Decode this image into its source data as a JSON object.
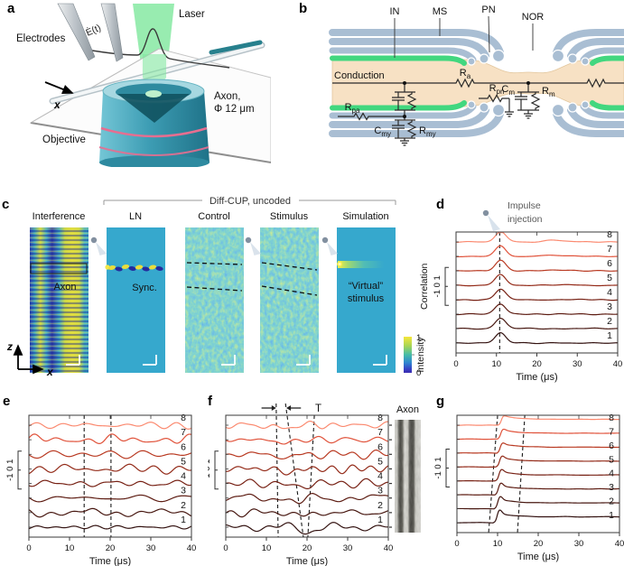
{
  "panels": {
    "a": {
      "label": "a",
      "electrodes_label": "Electrodes",
      "efield_label": "Ė(t)",
      "laser_label": "Laser",
      "axon_label_line1": "Axon,",
      "axon_label_line2": "Φ 12 μm",
      "x_axis_label": "x",
      "objective_label": "Objective"
    },
    "b": {
      "label": "b",
      "region_labels": [
        "IN",
        "MS",
        "PN",
        "NOR"
      ],
      "conduction_label": "Conduction",
      "components": [
        {
          "base": "R",
          "sub": "a"
        },
        {
          "base": "R",
          "sub": "pa"
        },
        {
          "base": "C",
          "sub": "my"
        },
        {
          "base": "R",
          "sub": "my"
        },
        {
          "base": "R",
          "sub": "pn"
        },
        {
          "base": "C",
          "sub": "m"
        },
        {
          "base": "R",
          "sub": "m"
        }
      ]
    },
    "c": {
      "label": "c",
      "group_title": "Diff-CUP, uncoded",
      "columns": [
        {
          "title": "Interference",
          "note": "Axon"
        },
        {
          "title": "LN",
          "note": "Sync."
        },
        {
          "title": "Control"
        },
        {
          "title": "Stimulus"
        },
        {
          "title": "Simulation",
          "note_line1": "“Virtual”",
          "note_line2": "stimulus"
        }
      ],
      "colorbar": {
        "label": "Intensity",
        "tick_max": "1",
        "tick_min": "0"
      },
      "axes": {
        "vertical": "z",
        "horizontal": "x"
      }
    },
    "d": {
      "label": "d"
    },
    "e": {
      "label": "e"
    },
    "f": {
      "label": "f"
    },
    "g": {
      "label": "g"
    }
  },
  "colors": {
    "trace_gradient": [
      "#331210",
      "#471710",
      "#5d1c12",
      "#772114",
      "#932a18",
      "#b93a22",
      "#e0523a",
      "#fb8a70"
    ],
    "heatmap_background": "#36a8cd",
    "heatmap_yellow": "#e9dd3c",
    "heatmap_dark_blue": "#252b9d",
    "myelin_blue_gray": "#a9bed3",
    "axoplasm_tan": "#f7e1c4",
    "membrane_green": "#42d77f",
    "objective_teal": "#49a9be",
    "laser_green": "#7ee79c",
    "ring_pink": "#e66e90",
    "dashed_marker": "#1a1a1a"
  },
  "chart_data": [
    {
      "id": "d",
      "type": "line",
      "xlabel": "Time (μs)",
      "ylabel": "Correlation",
      "x_range": [
        0,
        40
      ],
      "xticks": [
        "0",
        "10",
        "20",
        "30",
        "40"
      ],
      "y_scalebar_labels": "-1 0 1",
      "trace_labels": [
        "1",
        "2",
        "3",
        "4",
        "5",
        "6",
        "7",
        "8"
      ],
      "waveform": "impulse",
      "peak_time_us": 11,
      "secondary_bump_us": 25,
      "dashed_lines_us": [
        [
          10.8,
          10.8
        ]
      ],
      "annotation": {
        "line1": "Impulse",
        "line2": "injection"
      }
    },
    {
      "id": "e",
      "type": "line",
      "xlabel": "Time (μs)",
      "x_range": [
        0,
        40
      ],
      "xticks": [
        "0",
        "10",
        "20",
        "30",
        "40"
      ],
      "y_scalebar_labels": "-1 0 1",
      "trace_labels": [
        "1",
        "2",
        "3",
        "4",
        "5",
        "6",
        "7",
        "8"
      ],
      "waveform": "noise",
      "dashed_lines_us": [
        [
          13.6,
          13.6
        ],
        [
          20.2,
          20.2
        ]
      ]
    },
    {
      "id": "f",
      "type": "line",
      "xlabel": "Time (μs)",
      "x_range": [
        0,
        40
      ],
      "xticks": [
        "0",
        "10",
        "20",
        "30",
        "40"
      ],
      "y_scalebar_labels": "-1 0 1",
      "trace_labels": [
        "1",
        "2",
        "3",
        "4",
        "5",
        "6",
        "7",
        "8"
      ],
      "waveform": "noise-dip",
      "dip_first_us": 13.3,
      "dip_step_us": 1.0,
      "dashed_lines_us": [
        [
          12.4,
          12.9
        ],
        [
          14.7,
          19.1
        ],
        [
          21.8,
          20.2
        ]
      ],
      "interval_label": "T",
      "axon_image_label": "Axon"
    },
    {
      "id": "g",
      "type": "line",
      "xlabel": "Time (μs)",
      "x_range": [
        0,
        40
      ],
      "xticks": [
        "0",
        "10",
        "20",
        "30",
        "40"
      ],
      "y_scalebar_labels": "-1 0 1",
      "trace_labels": [
        "1",
        "2",
        "3",
        "4",
        "5",
        "6",
        "7",
        "8"
      ],
      "waveform": "step",
      "rise_first_us": 9.9,
      "rise_step_us": 0.15,
      "dashed_lines_us": [
        [
          10.0,
          7.8
        ],
        [
          16.7,
          14.9
        ]
      ]
    }
  ]
}
